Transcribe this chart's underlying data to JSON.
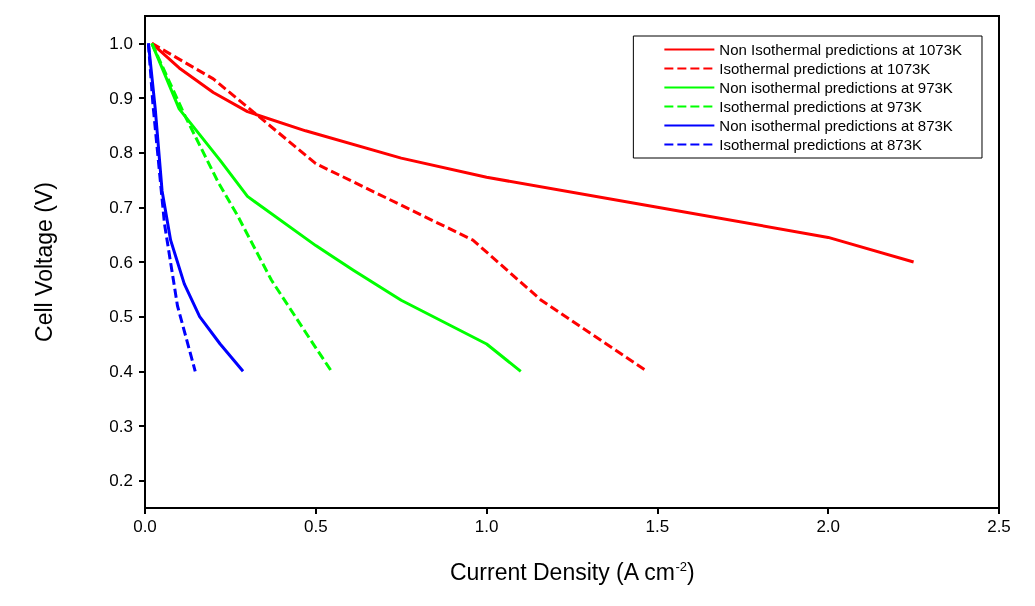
{
  "chart_data": {
    "type": "line",
    "xlabel": "Current Density (A cm$^{-2}$)",
    "ylabel": "Cell Voltage (V)",
    "xlim": [
      0,
      2.5
    ],
    "xticks": [
      {
        "value": 0,
        "label": "0.0"
      },
      0.5,
      {
        "value": 1,
        "label": "1.0"
      },
      1.5,
      {
        "value": 2,
        "label": "2.0"
      },
      2.5
    ],
    "ylim": [
      0.15,
      1.05
    ],
    "yticks": [
      0.2,
      0.3,
      0.4,
      0.5,
      0.6,
      0.7,
      0.8,
      0.9,
      {
        "value": 1,
        "label": "1.0"
      }
    ],
    "grid": false,
    "legend": "top right",
    "marker": "none",
    "series": [
      {
        "name": "Non Isothermal predictions at 1073K",
        "color": "#ff0000",
        "line_style": "solid",
        "x": [
          0.02,
          0.1,
          0.2,
          0.3,
          0.47,
          0.75,
          1.0,
          1.5,
          2.0,
          2.25
        ],
        "values": [
          1.0,
          0.955,
          0.91,
          0.875,
          0.84,
          0.79,
          0.755,
          0.7,
          0.645,
          0.6
        ]
      },
      {
        "name": "Isothermal predictions at 1073K",
        "color": "#ff0000",
        "line_style": "dashed",
        "x": [
          0.02,
          0.2,
          0.5,
          0.96,
          1.16,
          1.47
        ],
        "values": [
          1.0,
          0.935,
          0.78,
          0.64,
          0.53,
          0.4
        ]
      },
      {
        "name": "Non isothermal predictions at 973K",
        "color": "#00ff00",
        "line_style": "solid",
        "x": [
          0.02,
          0.1,
          0.22,
          0.3,
          0.5,
          0.61,
          0.75,
          1.0,
          1.1
        ],
        "values": [
          1.0,
          0.88,
          0.786,
          0.72,
          0.63,
          0.585,
          0.53,
          0.45,
          0.4
        ]
      },
      {
        "name": "Isothermal predictions at 973K",
        "color": "#00ff00",
        "line_style": "dashed",
        "x": [
          0.02,
          0.115,
          0.215,
          0.27,
          0.37,
          0.5,
          0.546
        ],
        "values": [
          1.0,
          0.87,
          0.745,
          0.686,
          0.567,
          0.443,
          0.4
        ]
      },
      {
        "name": "Non isothermal predictions at 873K",
        "color": "#0000ff",
        "line_style": "solid",
        "x": [
          0.01,
          0.03,
          0.05,
          0.075,
          0.115,
          0.16,
          0.22,
          0.287
        ],
        "values": [
          1.0,
          0.88,
          0.73,
          0.64,
          0.56,
          0.5,
          0.45,
          0.4
        ]
      },
      {
        "name": "Isothermal predictions at 873K",
        "color": "#0000ff",
        "line_style": "dashed",
        "x": [
          0.01,
          0.023,
          0.057,
          0.095,
          0.147
        ],
        "values": [
          1.0,
          0.89,
          0.67,
          0.52,
          0.4
        ]
      }
    ]
  }
}
